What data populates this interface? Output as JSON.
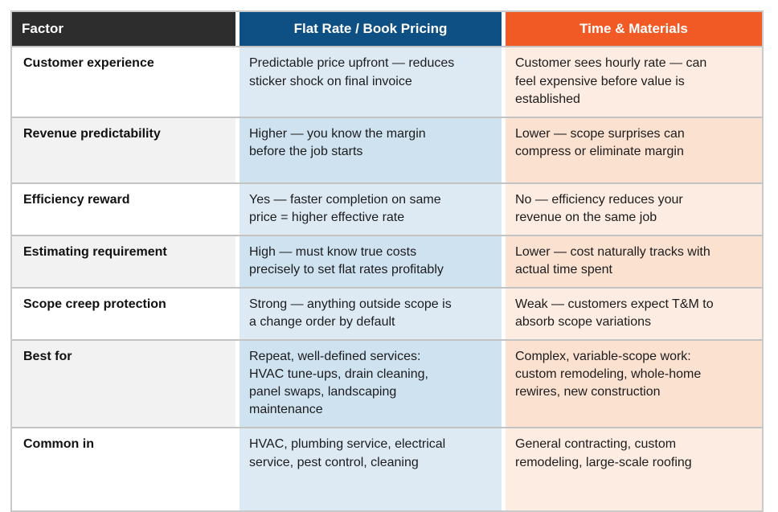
{
  "colors": {
    "factor_header_bg": "#2d2d2d",
    "flat_rate_header_bg": "#0e5084",
    "time_materials_header_bg": "#f15a24",
    "factor_cell_bg": "#ffffff",
    "factor_cell_bg_alt": "#f2f2f2",
    "flat_rate_cell_bg": "#ddeaf4",
    "flat_rate_cell_bg_alt": "#cfe2ef",
    "time_materials_cell_bg": "#fdece1",
    "time_materials_cell_bg_alt": "#fbe1d0"
  },
  "table": {
    "headers": [
      "Factor",
      "Flat Rate / Book Pricing",
      "Time & Materials"
    ],
    "rows": [
      {
        "factor": "Customer experience",
        "flat_rate": "Predictable price upfront — reduces\nsticker shock on final invoice",
        "time_materials": "Customer sees hourly rate — can\nfeel expensive before value is\nestablished"
      },
      {
        "factor": "Revenue predictability",
        "flat_rate": "Higher — you know the margin\nbefore the job starts",
        "time_materials": "Lower — scope surprises can\ncompress or eliminate margin"
      },
      {
        "factor": "Efficiency reward",
        "flat_rate": "Yes — faster completion on same\nprice = higher effective rate",
        "time_materials": "No — efficiency reduces your\nrevenue on the same job"
      },
      {
        "factor": "Estimating requirement",
        "flat_rate": "High — must know true costs\nprecisely to set flat rates profitably",
        "time_materials": "Lower — cost naturally tracks with\nactual time spent"
      },
      {
        "factor": "Scope creep protection",
        "flat_rate": "Strong — anything outside scope is\na change order by default",
        "time_materials": "Weak — customers expect T&M to\nabsorb scope variations"
      },
      {
        "factor": "Best for",
        "flat_rate": "Repeat, well-defined services:\nHVAC tune-ups, drain cleaning,\npanel swaps, landscaping\nmaintenance",
        "time_materials": "Complex, variable-scope work:\ncustom remodeling, whole-home\nrewires, new construction"
      },
      {
        "factor": "Common in",
        "flat_rate": "HVAC, plumbing service, electrical\nservice, pest control, cleaning",
        "time_materials": "General contracting, custom\nremodeling, large-scale roofing"
      }
    ]
  }
}
